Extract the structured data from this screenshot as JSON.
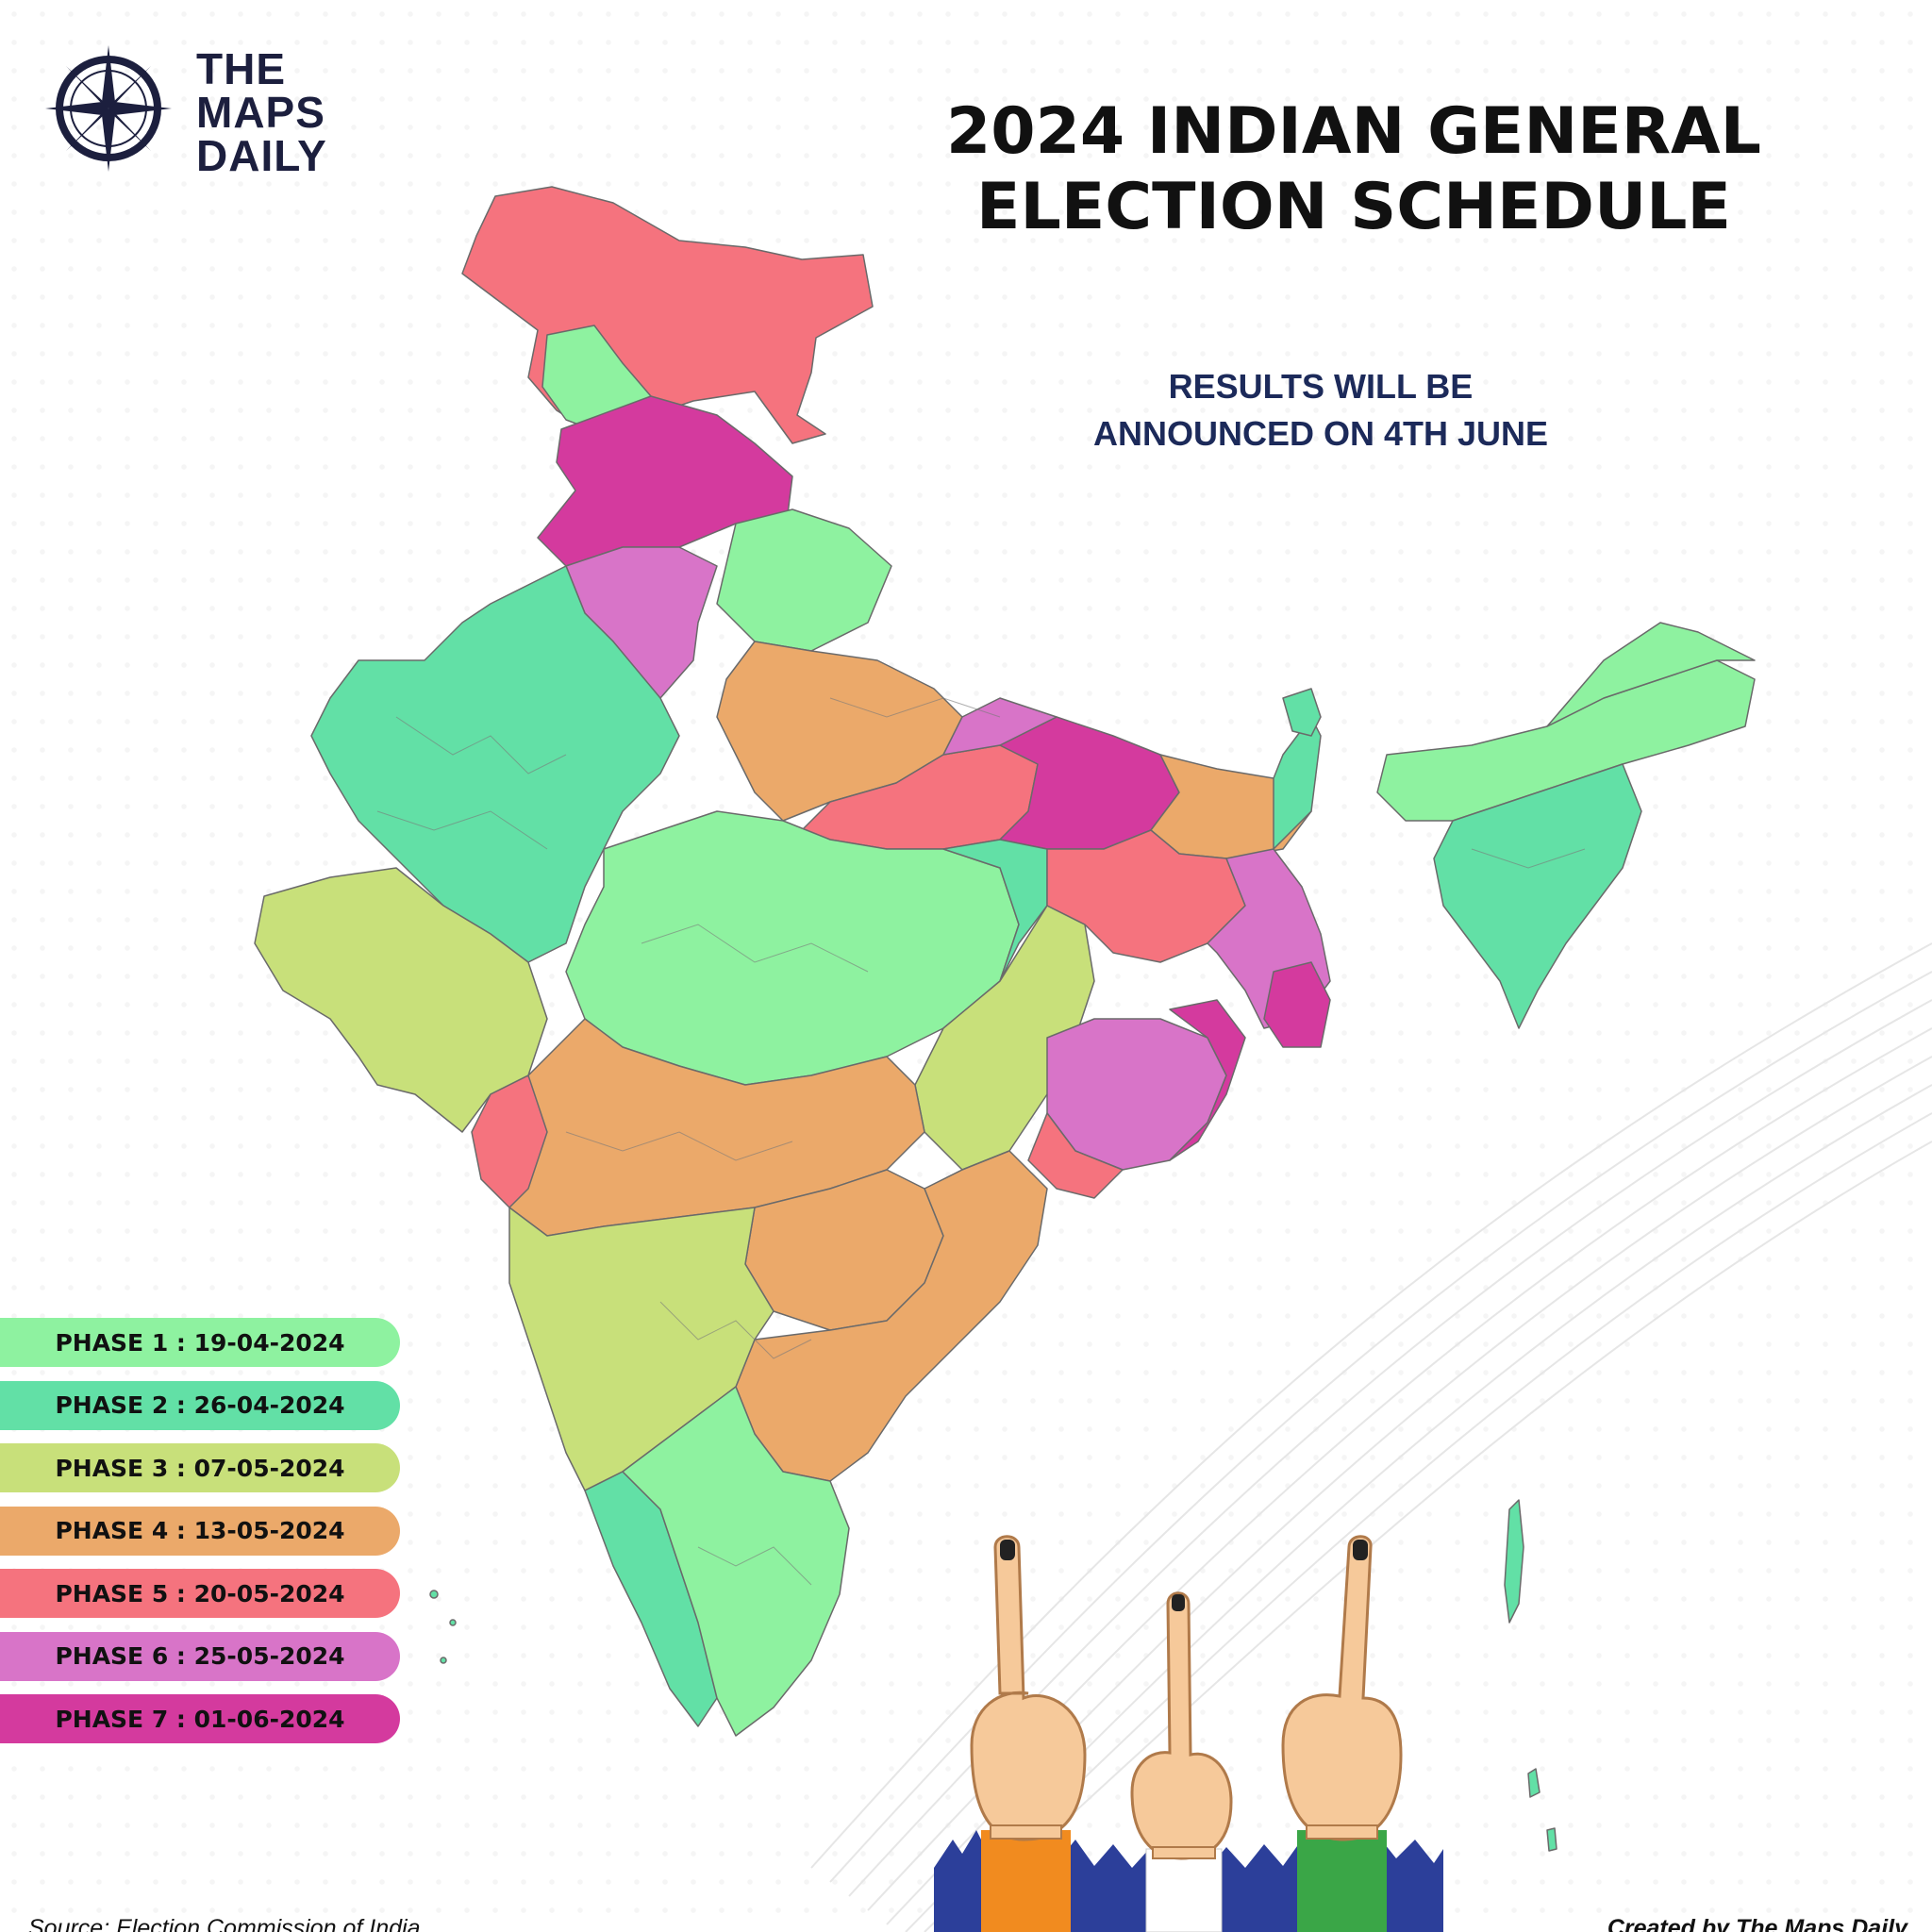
{
  "brand": {
    "line1": "THE",
    "line2": "MAPS",
    "line3": "DAILY",
    "logo_icon": "compass-rose-icon"
  },
  "title": {
    "line1": "2024 INDIAN GENERAL",
    "line2": "ELECTION SCHEDULE"
  },
  "subtitle": {
    "line1": "RESULTS WILL BE",
    "line2": "ANNOUNCED ON 4TH JUNE"
  },
  "legend": [
    {
      "label": "PHASE 1 : 19-04-2024",
      "color": "#8ef2a0"
    },
    {
      "label": "PHASE 2 : 26-04-2024",
      "color": "#62e0a6"
    },
    {
      "label": "PHASE 3 : 07-05-2024",
      "color": "#c8e07a"
    },
    {
      "label": "PHASE 4 : 13-05-2024",
      "color": "#eba96a"
    },
    {
      "label": "PHASE 5 : 20-05-2024",
      "color": "#f5737e"
    },
    {
      "label": "PHASE 6 : 25-05-2024",
      "color": "#d874c8"
    },
    {
      "label": "PHASE 7 : 01-06-2024",
      "color": "#d43a9e"
    }
  ],
  "footer": {
    "source": "Source: Election Commission of India",
    "credit": "Created by The Maps Daily"
  },
  "illustration": {
    "icon": "voting-inked-finger-hands-icon",
    "sleeve_colors": [
      "#f18b1f",
      "#ffffff",
      "#3aa647"
    ]
  }
}
